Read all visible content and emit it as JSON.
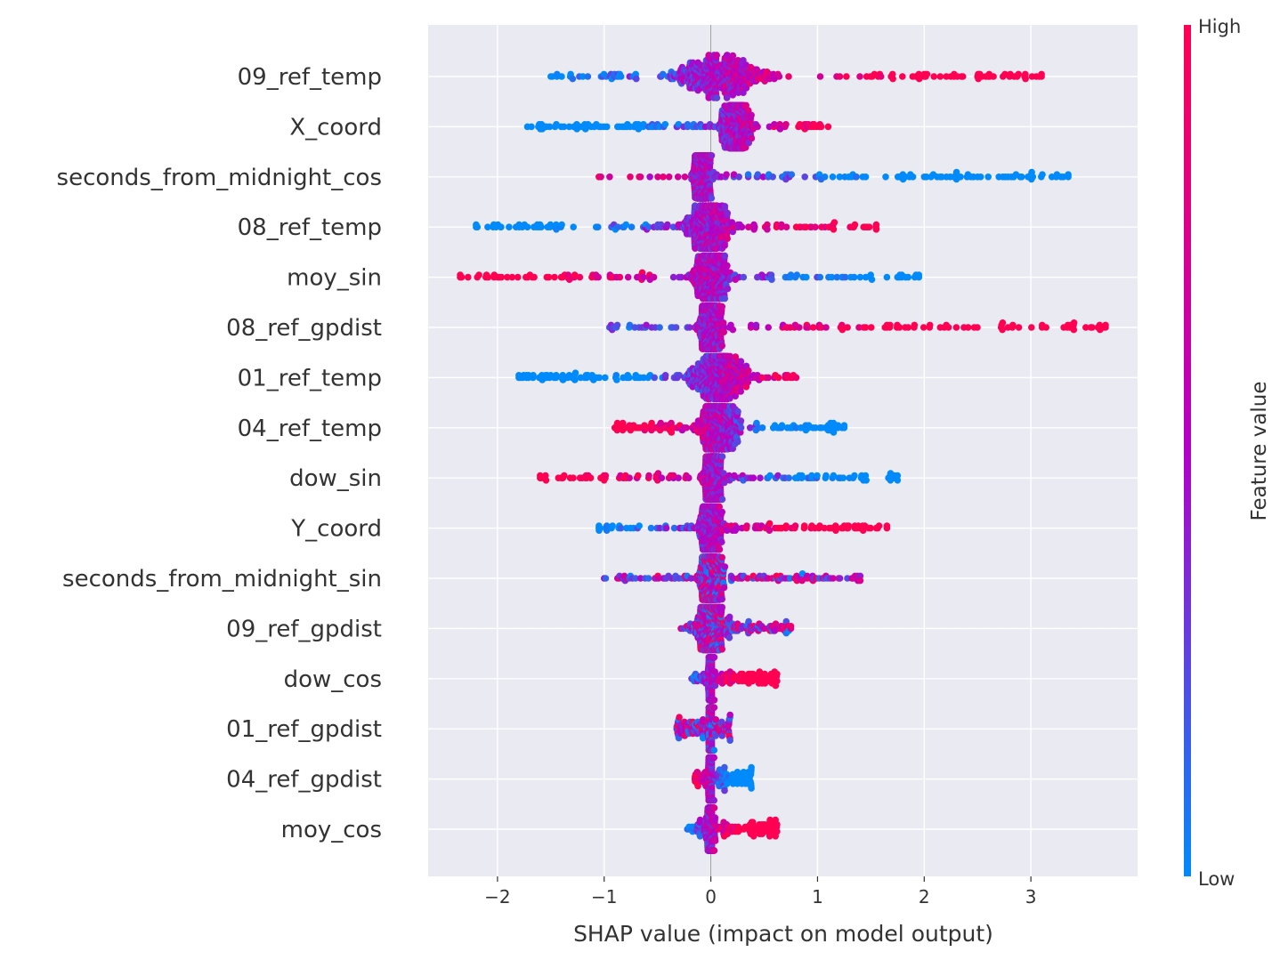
{
  "chart_data": {
    "type": "scatter",
    "subtype": "shap-beeswarm",
    "xlabel": "SHAP value (impact on model output)",
    "xlim": [
      -2.65,
      4.0
    ],
    "xticks": [
      -2,
      -1,
      0,
      1,
      2,
      3
    ],
    "xtick_labels": [
      "−2",
      "−1",
      "0",
      "1",
      "2",
      "3"
    ],
    "colorbar": {
      "title": "Feature value",
      "high_label": "High",
      "low_label": "Low",
      "high_color": "#ff0052",
      "low_color": "#008afb"
    },
    "features": [
      {
        "name": "09_ref_temp",
        "min": -1.5,
        "max": 3.1,
        "core": [
          -0.3,
          0.45
        ],
        "spread": 0.55,
        "sign": 1,
        "outliers": [
          2.0,
          2.15,
          2.25,
          2.35,
          2.5,
          2.6,
          2.8,
          3.1
        ]
      },
      {
        "name": "X_coord",
        "min": -1.72,
        "max": 1.1,
        "core": [
          0.1,
          0.35
        ],
        "spread": 0.3,
        "sign": 1,
        "outliers": [
          -0.55,
          -0.08
        ]
      },
      {
        "name": "seconds_from_midnight_cos",
        "min": -1.05,
        "max": 3.35,
        "core": [
          -0.15,
          0.0
        ],
        "spread": 0.55,
        "sign": -1,
        "outliers": [
          1.8,
          2.0,
          2.3,
          2.5,
          2.7,
          2.9,
          3.35
        ]
      },
      {
        "name": "08_ref_temp",
        "min": -2.2,
        "max": 1.55,
        "core": [
          -0.2,
          0.15
        ],
        "spread": 0.4,
        "sign": 1,
        "outliers": [
          -2.2,
          -1.6,
          -1.45,
          1.15,
          1.35,
          1.45,
          1.55
        ]
      },
      {
        "name": "moy_sin",
        "min": -2.35,
        "max": 1.95,
        "core": [
          -0.15,
          0.15
        ],
        "spread": 0.45,
        "sign": -1,
        "outliers": [
          -2.35,
          -1.28,
          0.75,
          1.4,
          1.65,
          1.75,
          1.85,
          1.95
        ]
      },
      {
        "name": "08_ref_gpdist",
        "min": -0.95,
        "max": 3.7,
        "core": [
          -0.1,
          0.1
        ],
        "spread": 0.5,
        "sign": 1,
        "outliers": [
          1.65,
          1.85,
          2.05,
          2.15,
          3.7
        ]
      },
      {
        "name": "01_ref_temp",
        "min": -1.8,
        "max": 0.8,
        "core": [
          -0.15,
          0.3
        ],
        "spread": 0.35,
        "sign": 1,
        "outliers": [
          -1.8,
          -1.5,
          -1.4,
          -1.3
        ]
      },
      {
        "name": "04_ref_temp",
        "min": -0.9,
        "max": 1.25,
        "core": [
          -0.1,
          0.25
        ],
        "spread": 0.3,
        "sign": -1,
        "outliers": [
          1.1,
          1.25
        ]
      },
      {
        "name": "dow_sin",
        "min": -1.6,
        "max": 1.75,
        "core": [
          -0.05,
          0.1
        ],
        "spread": 0.4,
        "sign": -1,
        "outliers": [
          -1.6,
          -1.55,
          1.15,
          1.45,
          1.75
        ]
      },
      {
        "name": "Y_coord",
        "min": -1.05,
        "max": 1.65,
        "core": [
          -0.1,
          0.1
        ],
        "spread": 0.35,
        "sign": 1,
        "outliers": [
          1.25,
          1.35,
          1.4,
          1.65
        ]
      },
      {
        "name": "seconds_from_midnight_sin",
        "min": -1.0,
        "max": 1.4,
        "core": [
          -0.1,
          0.1
        ],
        "spread": 0.3,
        "sign": 0,
        "outliers": [
          0.9,
          1.05,
          1.12,
          1.4
        ]
      },
      {
        "name": "09_ref_gpdist",
        "min": -0.28,
        "max": 0.75,
        "core": [
          -0.1,
          0.1
        ],
        "spread": 0.12,
        "sign": 0,
        "outliers": [
          0.25,
          0.58,
          0.72,
          0.75
        ]
      },
      {
        "name": "dow_cos",
        "min": -0.18,
        "max": 0.62,
        "core": [
          -0.02,
          0.03
        ],
        "spread": 0.1,
        "sign": 1,
        "outliers": [
          0.45,
          0.62
        ]
      },
      {
        "name": "01_ref_gpdist",
        "min": -0.32,
        "max": 0.18,
        "core": [
          -0.02,
          0.02
        ],
        "spread": 0.07,
        "sign": 0,
        "outliers": [
          -0.3,
          -0.28,
          0.18
        ]
      },
      {
        "name": "04_ref_gpdist",
        "min": -0.15,
        "max": 0.38,
        "core": [
          -0.02,
          0.02
        ],
        "spread": 0.09,
        "sign": -1,
        "outliers": [
          0.32,
          0.38
        ]
      },
      {
        "name": "moy_cos",
        "min": -0.22,
        "max": 0.62,
        "core": [
          -0.03,
          0.03
        ],
        "spread": 0.1,
        "sign": 1,
        "outliers": [
          0.45,
          0.55,
          0.6,
          0.62
        ]
      }
    ]
  }
}
